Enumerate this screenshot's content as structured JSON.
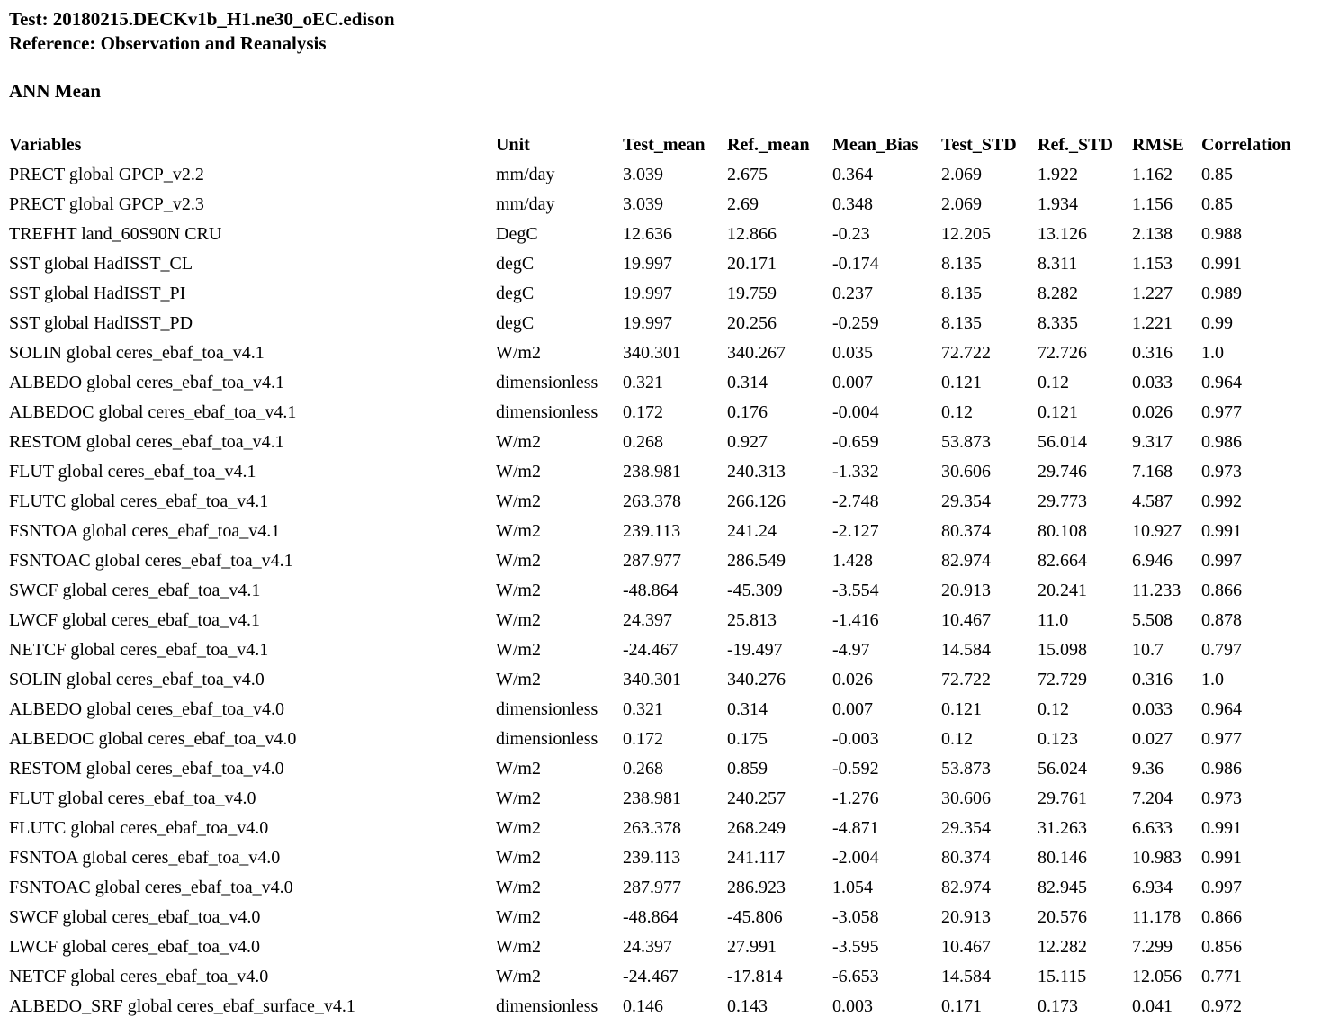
{
  "header": {
    "test_label": "Test: 20180215.DECKv1b_H1.ne30_oEC.edison",
    "reference_label": "Reference: Observation and Reanalysis"
  },
  "section_title": "ANN Mean",
  "table": {
    "columns": [
      "Variables",
      "Unit",
      "Test_mean",
      "Ref._mean",
      "Mean_Bias",
      "Test_STD",
      "Ref._STD",
      "RMSE",
      "Correlation"
    ],
    "rows": [
      {
        "variable": "PRECT global GPCP_v2.2",
        "unit": "mm/day",
        "test_mean": "3.039",
        "ref_mean": "2.675",
        "mean_bias": "0.364",
        "test_std": "2.069",
        "ref_std": "1.922",
        "rmse": "1.162",
        "correlation": "0.85"
      },
      {
        "variable": "PRECT global GPCP_v2.3",
        "unit": "mm/day",
        "test_mean": "3.039",
        "ref_mean": "2.69",
        "mean_bias": "0.348",
        "test_std": "2.069",
        "ref_std": "1.934",
        "rmse": "1.156",
        "correlation": "0.85"
      },
      {
        "variable": "TREFHT land_60S90N CRU",
        "unit": "DegC",
        "test_mean": "12.636",
        "ref_mean": "12.866",
        "mean_bias": "-0.23",
        "test_std": "12.205",
        "ref_std": "13.126",
        "rmse": "2.138",
        "correlation": "0.988"
      },
      {
        "variable": "SST global HadISST_CL",
        "unit": "degC",
        "test_mean": "19.997",
        "ref_mean": "20.171",
        "mean_bias": "-0.174",
        "test_std": "8.135",
        "ref_std": "8.311",
        "rmse": "1.153",
        "correlation": "0.991"
      },
      {
        "variable": "SST global HadISST_PI",
        "unit": "degC",
        "test_mean": "19.997",
        "ref_mean": "19.759",
        "mean_bias": "0.237",
        "test_std": "8.135",
        "ref_std": "8.282",
        "rmse": "1.227",
        "correlation": "0.989"
      },
      {
        "variable": "SST global HadISST_PD",
        "unit": "degC",
        "test_mean": "19.997",
        "ref_mean": "20.256",
        "mean_bias": "-0.259",
        "test_std": "8.135",
        "ref_std": "8.335",
        "rmse": "1.221",
        "correlation": "0.99"
      },
      {
        "variable": "SOLIN global ceres_ebaf_toa_v4.1",
        "unit": "W/m2",
        "test_mean": "340.301",
        "ref_mean": "340.267",
        "mean_bias": "0.035",
        "test_std": "72.722",
        "ref_std": "72.726",
        "rmse": "0.316",
        "correlation": "1.0"
      },
      {
        "variable": "ALBEDO global ceres_ebaf_toa_v4.1",
        "unit": "dimensionless",
        "test_mean": "0.321",
        "ref_mean": "0.314",
        "mean_bias": "0.007",
        "test_std": "0.121",
        "ref_std": "0.12",
        "rmse": "0.033",
        "correlation": "0.964"
      },
      {
        "variable": "ALBEDOC global ceres_ebaf_toa_v4.1",
        "unit": "dimensionless",
        "test_mean": "0.172",
        "ref_mean": "0.176",
        "mean_bias": "-0.004",
        "test_std": "0.12",
        "ref_std": "0.121",
        "rmse": "0.026",
        "correlation": "0.977"
      },
      {
        "variable": "RESTOM global ceres_ebaf_toa_v4.1",
        "unit": "W/m2",
        "test_mean": "0.268",
        "ref_mean": "0.927",
        "mean_bias": "-0.659",
        "test_std": "53.873",
        "ref_std": "56.014",
        "rmse": "9.317",
        "correlation": "0.986"
      },
      {
        "variable": "FLUT global ceres_ebaf_toa_v4.1",
        "unit": "W/m2",
        "test_mean": "238.981",
        "ref_mean": "240.313",
        "mean_bias": "-1.332",
        "test_std": "30.606",
        "ref_std": "29.746",
        "rmse": "7.168",
        "correlation": "0.973"
      },
      {
        "variable": "FLUTC global ceres_ebaf_toa_v4.1",
        "unit": "W/m2",
        "test_mean": "263.378",
        "ref_mean": "266.126",
        "mean_bias": "-2.748",
        "test_std": "29.354",
        "ref_std": "29.773",
        "rmse": "4.587",
        "correlation": "0.992"
      },
      {
        "variable": "FSNTOA global ceres_ebaf_toa_v4.1",
        "unit": "W/m2",
        "test_mean": "239.113",
        "ref_mean": "241.24",
        "mean_bias": "-2.127",
        "test_std": "80.374",
        "ref_std": "80.108",
        "rmse": "10.927",
        "correlation": "0.991"
      },
      {
        "variable": "FSNTOAC global ceres_ebaf_toa_v4.1",
        "unit": "W/m2",
        "test_mean": "287.977",
        "ref_mean": "286.549",
        "mean_bias": "1.428",
        "test_std": "82.974",
        "ref_std": "82.664",
        "rmse": "6.946",
        "correlation": "0.997"
      },
      {
        "variable": "SWCF global ceres_ebaf_toa_v4.1",
        "unit": "W/m2",
        "test_mean": "-48.864",
        "ref_mean": "-45.309",
        "mean_bias": "-3.554",
        "test_std": "20.913",
        "ref_std": "20.241",
        "rmse": "11.233",
        "correlation": "0.866"
      },
      {
        "variable": "LWCF global ceres_ebaf_toa_v4.1",
        "unit": "W/m2",
        "test_mean": "24.397",
        "ref_mean": "25.813",
        "mean_bias": "-1.416",
        "test_std": "10.467",
        "ref_std": "11.0",
        "rmse": "5.508",
        "correlation": "0.878"
      },
      {
        "variable": "NETCF global ceres_ebaf_toa_v4.1",
        "unit": "W/m2",
        "test_mean": "-24.467",
        "ref_mean": "-19.497",
        "mean_bias": "-4.97",
        "test_std": "14.584",
        "ref_std": "15.098",
        "rmse": "10.7",
        "correlation": "0.797"
      },
      {
        "variable": "SOLIN global ceres_ebaf_toa_v4.0",
        "unit": "W/m2",
        "test_mean": "340.301",
        "ref_mean": "340.276",
        "mean_bias": "0.026",
        "test_std": "72.722",
        "ref_std": "72.729",
        "rmse": "0.316",
        "correlation": "1.0"
      },
      {
        "variable": "ALBEDO global ceres_ebaf_toa_v4.0",
        "unit": "dimensionless",
        "test_mean": "0.321",
        "ref_mean": "0.314",
        "mean_bias": "0.007",
        "test_std": "0.121",
        "ref_std": "0.12",
        "rmse": "0.033",
        "correlation": "0.964"
      },
      {
        "variable": "ALBEDOC global ceres_ebaf_toa_v4.0",
        "unit": "dimensionless",
        "test_mean": "0.172",
        "ref_mean": "0.175",
        "mean_bias": "-0.003",
        "test_std": "0.12",
        "ref_std": "0.123",
        "rmse": "0.027",
        "correlation": "0.977"
      },
      {
        "variable": "RESTOM global ceres_ebaf_toa_v4.0",
        "unit": "W/m2",
        "test_mean": "0.268",
        "ref_mean": "0.859",
        "mean_bias": "-0.592",
        "test_std": "53.873",
        "ref_std": "56.024",
        "rmse": "9.36",
        "correlation": "0.986"
      },
      {
        "variable": "FLUT global ceres_ebaf_toa_v4.0",
        "unit": "W/m2",
        "test_mean": "238.981",
        "ref_mean": "240.257",
        "mean_bias": "-1.276",
        "test_std": "30.606",
        "ref_std": "29.761",
        "rmse": "7.204",
        "correlation": "0.973"
      },
      {
        "variable": "FLUTC global ceres_ebaf_toa_v4.0",
        "unit": "W/m2",
        "test_mean": "263.378",
        "ref_mean": "268.249",
        "mean_bias": "-4.871",
        "test_std": "29.354",
        "ref_std": "31.263",
        "rmse": "6.633",
        "correlation": "0.991"
      },
      {
        "variable": "FSNTOA global ceres_ebaf_toa_v4.0",
        "unit": "W/m2",
        "test_mean": "239.113",
        "ref_mean": "241.117",
        "mean_bias": "-2.004",
        "test_std": "80.374",
        "ref_std": "80.146",
        "rmse": "10.983",
        "correlation": "0.991"
      },
      {
        "variable": "FSNTOAC global ceres_ebaf_toa_v4.0",
        "unit": "W/m2",
        "test_mean": "287.977",
        "ref_mean": "286.923",
        "mean_bias": "1.054",
        "test_std": "82.974",
        "ref_std": "82.945",
        "rmse": "6.934",
        "correlation": "0.997"
      },
      {
        "variable": "SWCF global ceres_ebaf_toa_v4.0",
        "unit": "W/m2",
        "test_mean": "-48.864",
        "ref_mean": "-45.806",
        "mean_bias": "-3.058",
        "test_std": "20.913",
        "ref_std": "20.576",
        "rmse": "11.178",
        "correlation": "0.866"
      },
      {
        "variable": "LWCF global ceres_ebaf_toa_v4.0",
        "unit": "W/m2",
        "test_mean": "24.397",
        "ref_mean": "27.991",
        "mean_bias": "-3.595",
        "test_std": "10.467",
        "ref_std": "12.282",
        "rmse": "7.299",
        "correlation": "0.856"
      },
      {
        "variable": "NETCF global ceres_ebaf_toa_v4.0",
        "unit": "W/m2",
        "test_mean": "-24.467",
        "ref_mean": "-17.814",
        "mean_bias": "-6.653",
        "test_std": "14.584",
        "ref_std": "15.115",
        "rmse": "12.056",
        "correlation": "0.771"
      },
      {
        "variable": "ALBEDO_SRF global ceres_ebaf_surface_v4.1",
        "unit": "dimensionless",
        "test_mean": "0.146",
        "ref_mean": "0.143",
        "mean_bias": "0.003",
        "test_std": "0.171",
        "ref_std": "0.173",
        "rmse": "0.041",
        "correlation": "0.972"
      }
    ]
  }
}
